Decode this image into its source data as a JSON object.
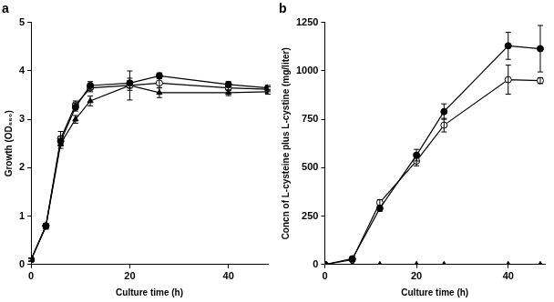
{
  "chart_data": [
    {
      "type": "line",
      "title": "a",
      "x_label": "Culture time (h)",
      "y_label": "Growth (OD₆₆₀)",
      "xlim": [
        0,
        48
      ],
      "xticks": [
        0,
        20,
        40
      ],
      "ylim": [
        0,
        5
      ],
      "yticks": [
        0,
        1,
        2,
        3,
        4,
        5
      ],
      "grid": false,
      "x": [
        0,
        3,
        6,
        9,
        12,
        20,
        26,
        40,
        48
      ],
      "series": [
        {
          "color": "#000000",
          "marker": "circle",
          "line_style": "solid",
          "values": [
            0.1,
            0.8,
            2.55,
            3.25,
            3.7,
            3.75,
            3.9,
            3.72,
            3.65
          ],
          "errors": [
            0.03,
            0.05,
            0.1,
            0.08,
            0.08,
            0.1,
            0.06,
            0.06,
            0.05
          ]
        },
        {
          "color": "#000000",
          "marker": "circle_open",
          "line_style": "solid",
          "values": [
            0.1,
            0.8,
            2.6,
            3.3,
            3.65,
            3.7,
            3.75,
            3.65,
            3.62
          ],
          "errors": [
            0.03,
            0.05,
            0.15,
            0.08,
            0.08,
            0.3,
            0.1,
            0.06,
            0.05
          ]
        },
        {
          "color": "#000000",
          "marker": "triangle",
          "line_style": "solid",
          "values": [
            0.1,
            0.78,
            2.5,
            3.0,
            3.38,
            3.7,
            3.55,
            3.55,
            3.57
          ],
          "errors": [
            0.03,
            0.05,
            0.1,
            0.08,
            0.1,
            0.1,
            0.1,
            0.06,
            0.05
          ]
        }
      ]
    },
    {
      "type": "line",
      "title": "b",
      "x_label": "Culture time (h)",
      "y_label": "Concn of L-cysteine plus L-cystine (mg/liter)",
      "xlim": [
        0,
        48
      ],
      "xticks": [
        0,
        20,
        40
      ],
      "ylim": [
        0,
        1250
      ],
      "yticks": [
        0,
        250,
        500,
        750,
        1000,
        1250
      ],
      "grid": false,
      "x": [
        0,
        6,
        12,
        20,
        26,
        40,
        47
      ],
      "series": [
        {
          "color": "#000000",
          "marker": "circle",
          "line_style": "solid",
          "values": [
            0,
            30,
            290,
            565,
            790,
            1130,
            1115
          ],
          "errors": [
            0,
            10,
            15,
            30,
            40,
            70,
            120
          ]
        },
        {
          "color": "#000000",
          "marker": "circle_open",
          "line_style": "solid",
          "values": [
            0,
            25,
            320,
            535,
            720,
            955,
            950
          ],
          "errors": [
            0,
            10,
            15,
            25,
            35,
            75,
            15
          ]
        },
        {
          "color": "#000000",
          "marker": "triangle",
          "line_style": "solid",
          "values": [
            0,
            0,
            0,
            0,
            0,
            0,
            0
          ],
          "errors": [
            0,
            0,
            0,
            0,
            0,
            0,
            0
          ]
        }
      ]
    }
  ]
}
